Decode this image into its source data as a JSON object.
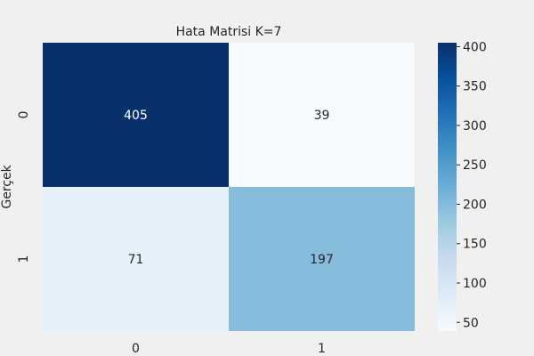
{
  "chart_data": {
    "type": "heatmap",
    "title": "Hata Matrisi K=7",
    "xlabel": "",
    "ylabel": "Gerçek",
    "x_categories": [
      "0",
      "1"
    ],
    "y_categories": [
      "0",
      "1"
    ],
    "values": [
      [
        405,
        39
      ],
      [
        71,
        197
      ]
    ],
    "cell_labels": [
      [
        "405",
        "39"
      ],
      [
        "71",
        "197"
      ]
    ],
    "colormap": "Blues",
    "color_range": [
      39,
      405
    ],
    "colorbar_ticks": [
      50,
      100,
      150,
      200,
      250,
      300,
      350,
      400
    ],
    "colorbar_tick_labels": [
      "50",
      "100",
      "150",
      "200",
      "250",
      "300",
      "350",
      "400"
    ],
    "colors": {
      "background": "#f0f0f0",
      "low": "#f7fbff",
      "high": "#08306b"
    }
  }
}
